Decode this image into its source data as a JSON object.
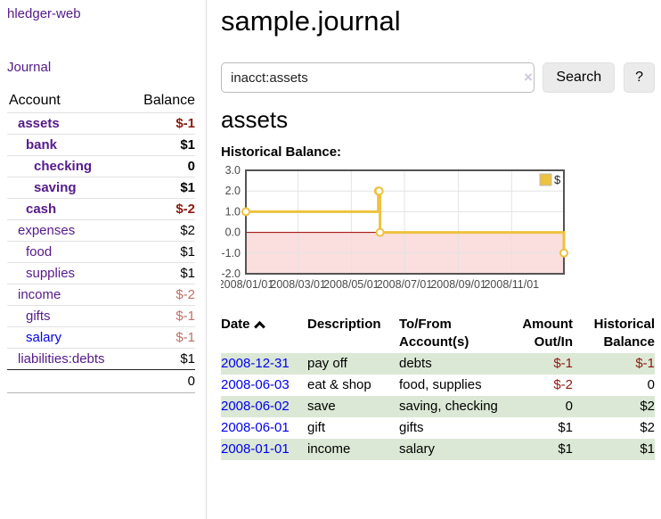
{
  "app": {
    "brand": "hledger-web",
    "nav_journal": "Journal"
  },
  "sidebar": {
    "account_header": "Account",
    "balance_header": "Balance",
    "accounts": [
      {
        "name": "assets",
        "depth": 0,
        "balance": "$-1",
        "bold": true,
        "link": "purple",
        "balance_class": "bal-neg-strong"
      },
      {
        "name": "bank",
        "depth": 1,
        "balance": "$1",
        "bold": true,
        "link": "purple",
        "balance_class": "bal-pos"
      },
      {
        "name": "checking",
        "depth": 2,
        "balance": "0",
        "bold": true,
        "link": "purple",
        "balance_class": "bal-pos"
      },
      {
        "name": "saving",
        "depth": 2,
        "balance": "$1",
        "bold": true,
        "link": "purple",
        "balance_class": "bal-pos"
      },
      {
        "name": "cash",
        "depth": 1,
        "balance": "$-2",
        "bold": true,
        "link": "purple",
        "balance_class": "bal-neg-strong"
      },
      {
        "name": "expenses",
        "depth": 0,
        "balance": "$2",
        "bold": false,
        "link": "purple",
        "balance_class": "bal-pos"
      },
      {
        "name": "food",
        "depth": 1,
        "balance": "$1",
        "bold": false,
        "link": "purple",
        "balance_class": "bal-pos"
      },
      {
        "name": "supplies",
        "depth": 1,
        "balance": "$1",
        "bold": false,
        "link": "purple",
        "balance_class": "bal-pos"
      },
      {
        "name": "income",
        "depth": 0,
        "balance": "$-2",
        "bold": false,
        "link": "purple",
        "balance_class": "bal-neg-soft"
      },
      {
        "name": "gifts",
        "depth": 1,
        "balance": "$-1",
        "bold": false,
        "link": "purple",
        "balance_class": "bal-neg-soft"
      },
      {
        "name": "salary",
        "depth": 1,
        "balance": "$-1",
        "bold": false,
        "link": "blue",
        "balance_class": "bal-neg-soft"
      },
      {
        "name": "liabilities:debts",
        "depth": 0,
        "balance": "$1",
        "bold": false,
        "link": "purple",
        "balance_class": "bal-pos"
      }
    ],
    "total": "0"
  },
  "header": {
    "title": "sample.journal"
  },
  "search": {
    "value": "inacct:assets",
    "clear_icon": "×",
    "button_label": "Search",
    "help_label": "?"
  },
  "account_page": {
    "heading": "assets",
    "chart_label": "Historical Balance:"
  },
  "chart_data": {
    "type": "line",
    "title": "Historical Balance",
    "style": "steps",
    "series": [
      {
        "name": "$",
        "color": "#edc240",
        "points": [
          [
            "2008-01-01",
            1
          ],
          [
            "2008-06-01",
            2
          ],
          [
            "2008-06-02",
            2
          ],
          [
            "2008-06-03",
            0
          ],
          [
            "2008-12-31",
            -1
          ]
        ]
      }
    ],
    "xlim": [
      "2008-01-01",
      "2008-12-31"
    ],
    "ylim": [
      -2,
      3
    ],
    "yticks": [
      {
        "v": 3,
        "label": "3.0"
      },
      {
        "v": 2,
        "label": "2.0"
      },
      {
        "v": 1,
        "label": "1.0"
      },
      {
        "v": 0,
        "label": "0.0"
      },
      {
        "v": -1,
        "label": "-1.0"
      },
      {
        "v": -2,
        "label": "-2.0"
      }
    ],
    "xticks": [
      {
        "x": "2008-01-01",
        "label": "2008/01/01"
      },
      {
        "x": "2008-03-01",
        "label": "2008/03/01"
      },
      {
        "x": "2008-05-01",
        "label": "2008/05/01"
      },
      {
        "x": "2008-07-01",
        "label": "2008/07/01"
      },
      {
        "x": "2008-09-01",
        "label": "2008/09/01"
      },
      {
        "x": "2008-11-01",
        "label": "2008/11/01"
      }
    ],
    "legend": {
      "label": "$",
      "position": "top-right"
    },
    "grid": true,
    "colors": {
      "series": "#edc240",
      "negative_region": "#fbdede",
      "zero_line": "#a00000",
      "plot_border": "#545454",
      "grid_line": "#e3e3e3",
      "tick_text": "#4a4a4a"
    }
  },
  "register": {
    "columns": {
      "date": "Date",
      "description": "Description",
      "accounts": "To/From Account(s)",
      "amount": "Amount Out/In",
      "balance": "Historical Balance"
    },
    "rows": [
      {
        "date": "2008-12-31",
        "description": "pay off",
        "accounts": "debts",
        "amount": "$-1",
        "balance": "$-1",
        "amount_neg": true,
        "balance_neg": true,
        "stripe": true
      },
      {
        "date": "2008-06-03",
        "description": "eat & shop",
        "accounts": "food, supplies",
        "amount": "$-2",
        "balance": "0",
        "amount_neg": true,
        "balance_neg": false,
        "stripe": false
      },
      {
        "date": "2008-06-02",
        "description": "save",
        "accounts": "saving, checking",
        "amount": "0",
        "balance": "$2",
        "amount_neg": false,
        "balance_neg": false,
        "stripe": true
      },
      {
        "date": "2008-06-01",
        "description": "gift",
        "accounts": "gifts",
        "amount": "$1",
        "balance": "$2",
        "amount_neg": false,
        "balance_neg": false,
        "stripe": false
      },
      {
        "date": "2008-01-01",
        "description": "income",
        "accounts": "salary",
        "amount": "$1",
        "balance": "$1",
        "amount_neg": false,
        "balance_neg": false,
        "stripe": true
      }
    ]
  }
}
